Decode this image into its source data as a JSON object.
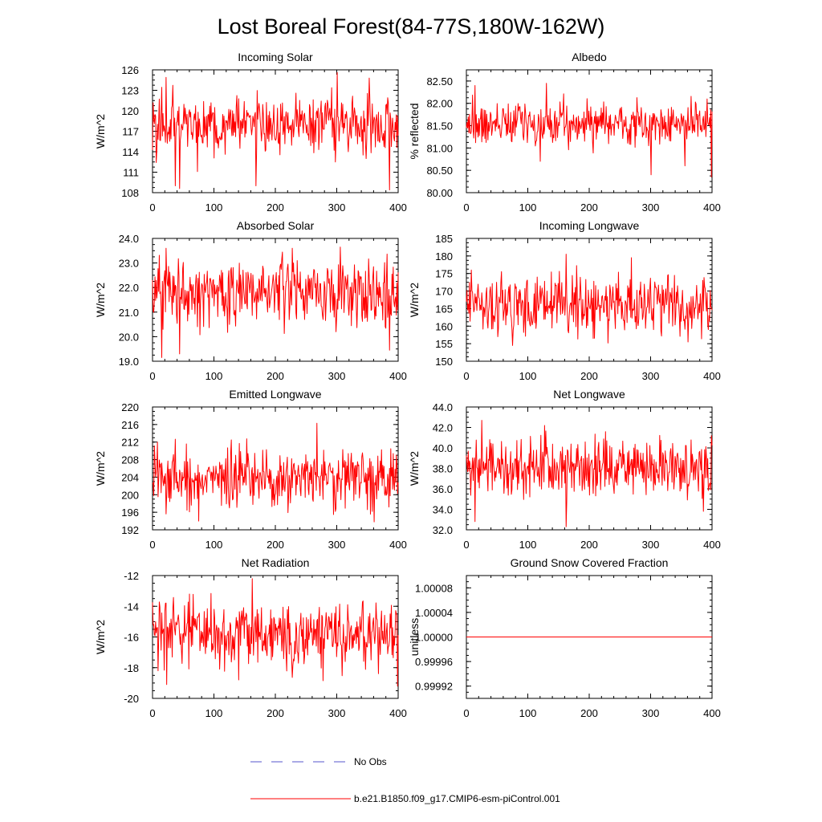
{
  "title": "Lost Boreal Forest(84-77S,180W-162W)",
  "colors": {
    "model": "#ff0000",
    "obs": "#5555cc",
    "axis": "#000000"
  },
  "legend": {
    "obs_label": "No Obs",
    "model_label": "b.e21.B1850.f09_g17.CMIP6-esm-piControl.001"
  },
  "chart_data": [
    {
      "type": "line",
      "title": "Incoming Solar",
      "xlabel": "",
      "ylabel": "W/m^2",
      "xlim": [
        0,
        400
      ],
      "ylim": [
        108,
        126
      ],
      "xticks": [
        0,
        100,
        200,
        300,
        400
      ],
      "xtick_labels": [
        "0",
        "100",
        "200",
        "300",
        "400"
      ],
      "yticks": [
        108,
        111,
        114,
        117,
        120,
        123,
        126
      ],
      "ytick_labels": [
        "108",
        "111",
        "114",
        "117",
        "120",
        "123",
        "126"
      ],
      "series": [
        {
          "name": "b.e21.B1850.f09_g17.CMIP6-esm-piControl.001",
          "n_points": 400,
          "mean": 118.0,
          "std": 2.6,
          "min": 108.2,
          "max": 125.6,
          "highlights": [
            [
              22,
              124.9
            ],
            [
              37,
              109.0
            ],
            [
              44,
              108.6
            ],
            [
              168,
              109.0
            ],
            [
              300,
              125.6
            ],
            [
              352,
              124.8
            ],
            [
              385,
              108.4
            ]
          ]
        }
      ]
    },
    {
      "type": "line",
      "title": "Albedo",
      "xlabel": "",
      "ylabel": "% reflected",
      "xlim": [
        0,
        400
      ],
      "ylim": [
        80.0,
        82.75
      ],
      "xticks": [
        0,
        100,
        200,
        300,
        400
      ],
      "xtick_labels": [
        "0",
        "100",
        "200",
        "300",
        "400"
      ],
      "yticks": [
        80.0,
        80.5,
        81.0,
        81.5,
        82.0,
        82.5
      ],
      "ytick_labels": [
        "80.00",
        "80.50",
        "81.00",
        "81.50",
        "82.00",
        "82.50"
      ],
      "series": [
        {
          "name": "b.e21.B1850.f09_g17.CMIP6-esm-piControl.001",
          "n_points": 400,
          "mean": 81.55,
          "std": 0.26,
          "min": 80.35,
          "max": 82.45,
          "highlights": [
            [
              14,
              82.4
            ],
            [
              130,
              82.45
            ],
            [
              120,
              80.7
            ],
            [
              300,
              80.4
            ],
            [
              355,
              80.6
            ],
            [
              398,
              80.35
            ]
          ]
        }
      ]
    },
    {
      "type": "line",
      "title": "Absorbed Solar",
      "xlabel": "",
      "ylabel": "W/m^2",
      "xlim": [
        0,
        400
      ],
      "ylim": [
        19.0,
        24.0
      ],
      "xticks": [
        0,
        100,
        200,
        300,
        400
      ],
      "xtick_labels": [
        "0",
        "100",
        "200",
        "300",
        "400"
      ],
      "yticks": [
        19.0,
        20.0,
        21.0,
        22.0,
        23.0,
        24.0
      ],
      "ytick_labels": [
        "19.0",
        "20.0",
        "21.0",
        "22.0",
        "23.0",
        "24.0"
      ],
      "series": [
        {
          "name": "b.e21.B1850.f09_g17.CMIP6-esm-piControl.001",
          "n_points": 400,
          "mean": 21.8,
          "std": 0.72,
          "min": 19.15,
          "max": 23.65,
          "highlights": [
            [
              15,
              19.15
            ],
            [
              44,
              19.3
            ],
            [
              22,
              23.6
            ],
            [
              227,
              23.6
            ],
            [
              305,
              23.65
            ],
            [
              385,
              19.45
            ]
          ]
        }
      ]
    },
    {
      "type": "line",
      "title": "Incoming Longwave",
      "xlabel": "",
      "ylabel": "W/m^2",
      "xlim": [
        0,
        400
      ],
      "ylim": [
        150,
        185
      ],
      "xticks": [
        0,
        100,
        200,
        300,
        400
      ],
      "xtick_labels": [
        "0",
        "100",
        "200",
        "300",
        "400"
      ],
      "yticks": [
        150,
        155,
        160,
        165,
        170,
        175,
        180,
        185
      ],
      "ytick_labels": [
        "150",
        "155",
        "160",
        "165",
        "170",
        "175",
        "180",
        "185"
      ],
      "series": [
        {
          "name": "b.e21.B1850.f09_g17.CMIP6-esm-piControl.001",
          "n_points": 400,
          "mean": 166.0,
          "std": 4.6,
          "min": 154.5,
          "max": 180.5,
          "highlights": [
            [
              162,
              180.5
            ],
            [
              268,
              179.5
            ],
            [
              75,
              154.5
            ],
            [
              360,
              155.5
            ],
            [
              8,
              176.0
            ]
          ]
        }
      ]
    },
    {
      "type": "line",
      "title": "Emitted Longwave",
      "xlabel": "",
      "ylabel": "W/m^2",
      "xlim": [
        0,
        400
      ],
      "ylim": [
        192,
        220
      ],
      "xticks": [
        0,
        100,
        200,
        300,
        400
      ],
      "xtick_labels": [
        "0",
        "100",
        "200",
        "300",
        "400"
      ],
      "yticks": [
        192,
        196,
        200,
        204,
        208,
        212,
        216,
        220
      ],
      "ytick_labels": [
        "192",
        "196",
        "200",
        "204",
        "208",
        "212",
        "216",
        "220"
      ],
      "series": [
        {
          "name": "b.e21.B1850.f09_g17.CMIP6-esm-piControl.001",
          "n_points": 400,
          "mean": 203.5,
          "std": 3.6,
          "min": 193.8,
          "max": 216.3,
          "highlights": [
            [
              267,
              216.3
            ],
            [
              75,
              194.0
            ],
            [
              360,
              193.8
            ],
            [
              128,
              212.5
            ],
            [
              8,
              212.0
            ]
          ]
        }
      ]
    },
    {
      "type": "line",
      "title": "Net Longwave",
      "xlabel": "",
      "ylabel": "W/m^2",
      "xlim": [
        0,
        400
      ],
      "ylim": [
        32.0,
        44.0
      ],
      "xticks": [
        0,
        100,
        200,
        300,
        400
      ],
      "xtick_labels": [
        "0",
        "100",
        "200",
        "300",
        "400"
      ],
      "yticks": [
        32.0,
        34.0,
        36.0,
        38.0,
        40.0,
        42.0,
        44.0
      ],
      "ytick_labels": [
        "32.0",
        "34.0",
        "36.0",
        "38.0",
        "40.0",
        "42.0",
        "44.0"
      ],
      "series": [
        {
          "name": "b.e21.B1850.f09_g17.CMIP6-esm-piControl.001",
          "n_points": 400,
          "mean": 38.0,
          "std": 1.55,
          "min": 32.3,
          "max": 42.7,
          "highlights": [
            [
              25,
              42.7
            ],
            [
              127,
              42.2
            ],
            [
              162,
              32.3
            ],
            [
              14,
              32.8
            ],
            [
              385,
              33.8
            ],
            [
              398,
              41.2
            ]
          ]
        }
      ]
    },
    {
      "type": "line",
      "title": "Net Radiation",
      "xlabel": "",
      "ylabel": "W/m^2",
      "xlim": [
        0,
        400
      ],
      "ylim": [
        -20,
        -12
      ],
      "xticks": [
        0,
        100,
        200,
        300,
        400
      ],
      "xtick_labels": [
        "0",
        "100",
        "200",
        "300",
        "400"
      ],
      "yticks": [
        -20,
        -18,
        -16,
        -14,
        -12
      ],
      "ytick_labels": [
        "-20",
        "-18",
        "-16",
        "-14",
        "-12"
      ],
      "series": [
        {
          "name": "b.e21.B1850.f09_g17.CMIP6-esm-piControl.001",
          "n_points": 400,
          "mean": -15.9,
          "std": 1.15,
          "min": -19.2,
          "max": -12.2,
          "highlights": [
            [
              162,
              -12.2
            ],
            [
              23,
              -19.1
            ],
            [
              398,
              -19.2
            ],
            [
              140,
              -18.8
            ],
            [
              60,
              -13.2
            ]
          ]
        }
      ]
    },
    {
      "type": "line",
      "title": "Ground Snow Covered Fraction",
      "xlabel": "",
      "ylabel": "unitless",
      "xlim": [
        0,
        400
      ],
      "ylim": [
        0.9999,
        1.0001
      ],
      "xticks": [
        0,
        100,
        200,
        300,
        400
      ],
      "xtick_labels": [
        "0",
        "100",
        "200",
        "300",
        "400"
      ],
      "yticks": [
        0.99992,
        0.99996,
        1.0,
        1.00004,
        1.00008
      ],
      "ytick_labels": [
        "0.99992",
        "0.99996",
        "1.00000",
        "1.00004",
        "1.00008"
      ],
      "series": [
        {
          "name": "b.e21.B1850.f09_g17.CMIP6-esm-piControl.001",
          "n_points": 400,
          "constant": 1.0,
          "std": 0
        }
      ]
    }
  ]
}
